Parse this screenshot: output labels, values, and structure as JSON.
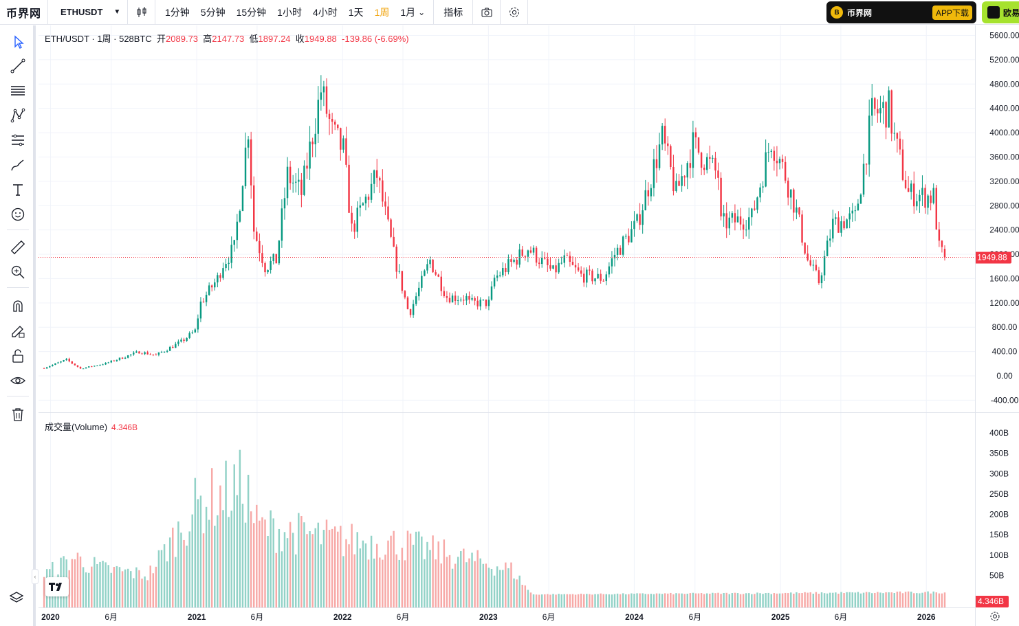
{
  "topbar": {
    "logo": "币界网",
    "symbol": "ETHUSDT",
    "intervals": [
      "1分钟",
      "5分钟",
      "15分钟",
      "1小时",
      "4小时",
      "1天",
      "1周",
      "1月"
    ],
    "active_interval": "1周",
    "indicators_label": "指标",
    "ad1_text": "币界网",
    "ad1_download": "APP下载",
    "ad2_text": "欧易"
  },
  "legend": {
    "title": "ETH/USDT · 1周 · 528BTC",
    "open_label": "开",
    "open": "2089.73",
    "high_label": "高",
    "high": "2147.73",
    "low_label": "低",
    "low": "1897.24",
    "close_label": "收",
    "close": "1949.88",
    "change": "-139.86 (-6.69%)"
  },
  "volume_legend": {
    "title": "成交量(Volume)",
    "value": "4.346B"
  },
  "last_price": "1949.88",
  "last_volume": "4.346B",
  "price_axis": [
    "5600.00",
    "5200.00",
    "4800.00",
    "4400.00",
    "4000.00",
    "3600.00",
    "3200.00",
    "2800.00",
    "2400.00",
    "2000.00",
    "1600.00",
    "1200.00",
    "800.00",
    "400.00",
    "0.00",
    "-400.00"
  ],
  "volume_axis": [
    "400B",
    "350B",
    "300B",
    "250B",
    "200B",
    "150B",
    "100B",
    "50B"
  ],
  "time_axis": [
    "2020",
    "6月",
    "2021",
    "6月",
    "2022",
    "6月",
    "2023",
    "6月",
    "2024",
    "6月",
    "2025",
    "6月",
    "2026"
  ],
  "colors": {
    "up": "#089981",
    "down": "#f23645",
    "up_vol": "#92d2c7",
    "down_vol": "#f7a9a7",
    "active": "#f0a30a"
  },
  "chart_data": {
    "type": "candlestick",
    "symbol": "ETH/USDT",
    "interval": "1周",
    "ylim": [
      -400,
      5600
    ],
    "volume_ylim": [
      0,
      400
    ],
    "volume_unit": "B",
    "anchors": [
      [
        "2019-12-16",
        130
      ],
      [
        "2020-02-10",
        265
      ],
      [
        "2020-03-16",
        120
      ],
      [
        "2020-05-18",
        205
      ],
      [
        "2020-08-10",
        395
      ],
      [
        "2020-09-21",
        340
      ],
      [
        "2020-11-23",
        560
      ],
      [
        "2020-12-28",
        740
      ],
      [
        "2021-01-11",
        1200
      ],
      [
        "2021-02-22",
        1600
      ],
      [
        "2021-03-08",
        1850
      ],
      [
        "2021-04-05",
        2100
      ],
      [
        "2021-05-10",
        4100
      ],
      [
        "2021-05-24",
        2400
      ],
      [
        "2021-06-21",
        1800
      ],
      [
        "2021-07-19",
        1900
      ],
      [
        "2021-08-16",
        3300
      ],
      [
        "2021-09-20",
        3000
      ],
      [
        "2021-11-08",
        4700
      ],
      [
        "2021-12-06",
        4000
      ],
      [
        "2022-01-03",
        3700
      ],
      [
        "2022-01-24",
        2400
      ],
      [
        "2022-03-28",
        3300
      ],
      [
        "2022-05-09",
        2000
      ],
      [
        "2022-06-13",
        1100
      ],
      [
        "2022-06-20",
        1070
      ],
      [
        "2022-08-08",
        1900
      ],
      [
        "2022-09-19",
        1300
      ],
      [
        "2022-11-07",
        1280
      ],
      [
        "2022-11-14",
        1200
      ],
      [
        "2023-01-02",
        1200
      ],
      [
        "2023-01-16",
        1600
      ],
      [
        "2023-04-10",
        2100
      ],
      [
        "2023-06-12",
        1700
      ],
      [
        "2023-07-10",
        1900
      ],
      [
        "2023-08-21",
        1650
      ],
      [
        "2023-10-16",
        1600
      ],
      [
        "2023-11-13",
        2000
      ],
      [
        "2024-01-08",
        2500
      ],
      [
        "2024-03-11",
        3900
      ],
      [
        "2024-04-15",
        3000
      ],
      [
        "2024-05-27",
        3800
      ],
      [
        "2024-07-29",
        3300
      ],
      [
        "2024-08-05",
        2500
      ],
      [
        "2024-10-21",
        2600
      ],
      [
        "2024-12-09",
        3900
      ],
      [
        "2025-01-13",
        3300
      ],
      [
        "2025-02-10",
        2700
      ],
      [
        "2025-03-10",
        1900
      ],
      [
        "2025-04-07",
        1550
      ],
      [
        "2025-05-12",
        2500
      ],
      [
        "2025-07-07",
        2600
      ],
      [
        "2025-08-18",
        4300
      ],
      [
        "2025-09-29",
        4400
      ],
      [
        "2025-10-13",
        3900
      ],
      [
        "2025-11-17",
        3000
      ],
      [
        "2025-12-29",
        2950
      ],
      [
        "2026-01-19",
        2950
      ],
      [
        "2026-02-02",
        2100
      ],
      [
        "2026-02-16",
        1950
      ]
    ],
    "volume_regime": [
      [
        "2019-12-16",
        60
      ],
      [
        "2020-03-01",
        110
      ],
      [
        "2020-05-01",
        80
      ],
      [
        "2020-09-01",
        60
      ],
      [
        "2021-01-01",
        260
      ],
      [
        "2021-05-01",
        320
      ],
      [
        "2021-06-01",
        200
      ],
      [
        "2022-01-01",
        160
      ],
      [
        "2022-06-01",
        150
      ],
      [
        "2023-03-01",
        75
      ],
      [
        "2023-04-20",
        4
      ],
      [
        "2026-02-16",
        10
      ]
    ]
  }
}
